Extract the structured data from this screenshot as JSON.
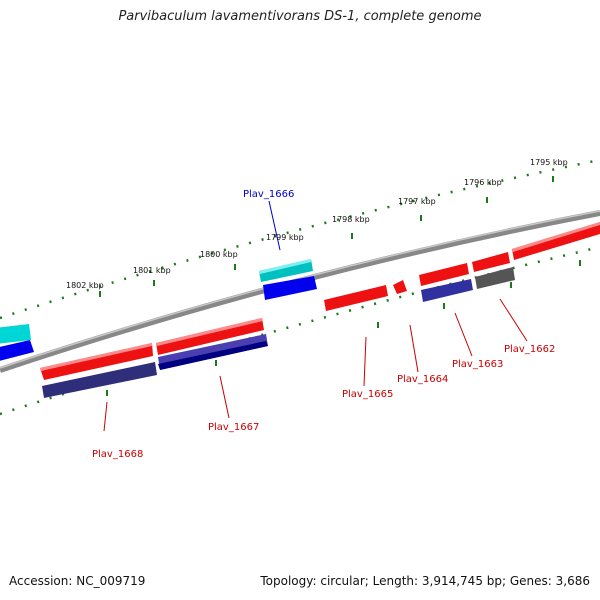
{
  "title": "Parvibaculum lavamentivorans DS-1, complete genome",
  "footer": {
    "accession": "Accession: NC_009719",
    "topology": "Topology: circular; Length: 3,914,745 bp; Genes: 3,686"
  },
  "colors": {
    "forward_gene": "#ee1111",
    "reverse_gene": "#2a2a9a",
    "highlight_gene": "#00bbbb",
    "pseudo_gene": "#666666",
    "backbone": "#888888",
    "ruler": "#1a7a1a",
    "label_red": "#cc0000",
    "label_blue": "#0000cc"
  },
  "ruler_labels": [
    "1802 kbp",
    "1801 kbp",
    "1800 kbp",
    "1799 kbp",
    "1798 kbp",
    "1797 kbp",
    "1796 kbp",
    "1795 kbp"
  ],
  "gene_labels": [
    {
      "name": "Plav_1668",
      "color": "red"
    },
    {
      "name": "Plav_1667",
      "color": "red"
    },
    {
      "name": "Plav_1666",
      "color": "blue"
    },
    {
      "name": "Plav_1665",
      "color": "red"
    },
    {
      "name": "Plav_1664",
      "color": "red"
    },
    {
      "name": "Plav_1663",
      "color": "red"
    },
    {
      "name": "Plav_1662",
      "color": "red"
    }
  ]
}
